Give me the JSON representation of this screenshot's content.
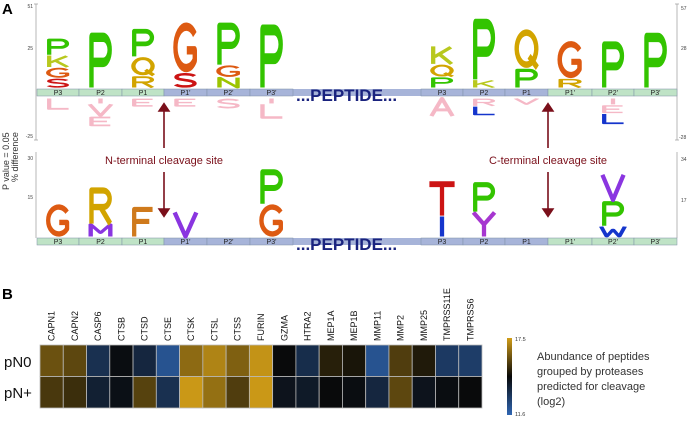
{
  "panel_a": {
    "label": "A",
    "y_label_line1": "P value = 0.05",
    "y_label_line2": "% difference",
    "peptide_label": "...PEPTIDE...",
    "n_site_label": "N-terminal cleavage site",
    "c_site_label": "C-terminal cleavage site",
    "positions_left": [
      "P3",
      "P2",
      "P1",
      "P1'",
      "P2'",
      "P3'"
    ],
    "positions_right": [
      "P3",
      "P2",
      "P1",
      "P1'",
      "P2'",
      "P3'"
    ],
    "top_axis_left_ticks": [
      "51",
      "25",
      "-25"
    ],
    "top_axis_right_ticks": [
      "57",
      "28",
      "-28"
    ],
    "bottom_axis_left_ticks": [
      "30",
      "15"
    ],
    "bottom_axis_right_ticks": [
      "34",
      "17"
    ],
    "colors": {
      "green": "#33c400",
      "orange": "#dd5a12",
      "olive": "#b8c81e",
      "red": "#cc1414",
      "gold": "#d2a400",
      "purple": "#8a35e0",
      "brown": "#cf7a1c",
      "blue": "#1535cc",
      "pink": "#f5b8c6",
      "magenta": "#a636d0",
      "yellowgreen": "#9cc400"
    },
    "top_logo": {
      "left_above": [
        [
          {
            "l": "S",
            "h": 5.5,
            "c": "red"
          },
          {
            "l": "G",
            "h": 6,
            "c": "orange"
          },
          {
            "l": "K",
            "h": 7,
            "c": "olive"
          },
          {
            "l": "P",
            "h": 10,
            "c": "green"
          }
        ],
        [
          {
            "l": "P",
            "h": 34,
            "c": "green"
          }
        ],
        [
          {
            "l": "R",
            "h": 7,
            "c": "gold"
          },
          {
            "l": "Q",
            "h": 11,
            "c": "gold"
          },
          {
            "l": "P",
            "h": 17,
            "c": "green"
          }
        ],
        [
          {
            "l": "S",
            "h": 9,
            "c": "red"
          },
          {
            "l": "G",
            "h": 30,
            "c": "orange"
          }
        ],
        [
          {
            "l": "N",
            "h": 6,
            "c": "yellowgreen"
          },
          {
            "l": "G",
            "h": 7,
            "c": "orange"
          },
          {
            "l": "P",
            "h": 26,
            "c": "green"
          }
        ],
        [
          {
            "l": "P",
            "h": 39,
            "c": "green"
          }
        ]
      ],
      "left_below": [
        [
          {
            "l": "L",
            "h": 7,
            "c": "pink"
          }
        ],
        [
          {
            "l": "I",
            "h": 3,
            "c": "pink"
          },
          {
            "l": "V",
            "h": 7,
            "c": "pink"
          },
          {
            "l": "E",
            "h": 6,
            "c": "pink"
          }
        ],
        [
          {
            "l": "E",
            "h": 5,
            "c": "pink"
          }
        ],
        [
          {
            "l": "E",
            "h": 5,
            "c": "pink"
          }
        ],
        [
          {
            "l": "S",
            "h": 6,
            "c": "pink"
          }
        ],
        [
          {
            "l": "I",
            "h": 3,
            "c": "pink"
          },
          {
            "l": "L",
            "h": 9,
            "c": "pink"
          }
        ]
      ],
      "right_above": [
        [
          {
            "l": "P",
            "h": 7,
            "c": "green"
          },
          {
            "l": "Q",
            "h": 8,
            "c": "gold"
          },
          {
            "l": "K",
            "h": 12,
            "c": "olive"
          }
        ],
        [
          {
            "l": "K",
            "h": 5,
            "c": "olive"
          },
          {
            "l": "P",
            "h": 42,
            "c": "green"
          }
        ],
        [
          {
            "l": "P",
            "h": 13,
            "c": "green"
          },
          {
            "l": "Q",
            "h": 26,
            "c": "gold"
          }
        ],
        [
          {
            "l": "R",
            "h": 6,
            "c": "gold"
          },
          {
            "l": "G",
            "h": 25,
            "c": "orange"
          }
        ],
        [
          {
            "l": "P",
            "h": 32,
            "c": "green"
          }
        ],
        [
          {
            "l": "P",
            "h": 38,
            "c": "green"
          }
        ]
      ],
      "right_below": [
        [
          {
            "l": "A",
            "h": 12,
            "c": "pink"
          }
        ],
        [
          {
            "l": "R",
            "h": 5,
            "c": "pink"
          },
          {
            "l": "L",
            "h": 6,
            "c": "blue"
          }
        ],
        [
          {
            "l": "V",
            "h": 4,
            "c": "pink"
          }
        ],
        [],
        [
          {
            "l": "I",
            "h": 4,
            "c": "pink"
          },
          {
            "l": "E",
            "h": 5.5,
            "c": "pink"
          },
          {
            "l": "L",
            "h": 7,
            "c": "blue"
          }
        ],
        []
      ]
    },
    "bottom_logo": {
      "left_above": [
        [
          {
            "l": "G",
            "h": 11.7,
            "c": "orange"
          }
        ],
        [
          {
            "l": "M",
            "h": 4.4,
            "c": "purple"
          },
          {
            "l": "R",
            "h": 13.5,
            "c": "gold"
          }
        ],
        [
          {
            "l": "F",
            "h": 11,
            "c": "brown"
          }
        ],
        [
          {
            "l": "V",
            "h": 8.8,
            "c": "purple"
          }
        ],
        [],
        [
          {
            "l": "G",
            "h": 11.7,
            "c": "orange"
          },
          {
            "l": "P",
            "h": 12.8,
            "c": "green"
          }
        ]
      ],
      "right_above": [
        [
          {
            "l": "I",
            "h": 8.3,
            "c": "blue"
          },
          {
            "l": "T",
            "h": 14.5,
            "c": "red"
          }
        ],
        [
          {
            "l": "Y",
            "h": 10,
            "c": "magenta"
          },
          {
            "l": "P",
            "h": 12.4,
            "c": "green"
          }
        ],
        [],
        [],
        [
          {
            "l": "W",
            "h": 4.1,
            "c": "blue"
          },
          {
            "l": "P",
            "h": 10.4,
            "c": "green"
          },
          {
            "l": "V",
            "h": 10.4,
            "c": "purple"
          }
        ],
        []
      ]
    }
  },
  "panel_b": {
    "label": "B",
    "chart_data": {
      "type": "heatmap",
      "columns": [
        "CAPN1",
        "CAPN2",
        "CASP6",
        "CTSB",
        "CTSD",
        "CTSE",
        "CTSK",
        "CTSL",
        "CTSS",
        "FURIN",
        "GZMA",
        "HTRA2",
        "MEP1A",
        "MEP1B",
        "MMP11",
        "MMP2",
        "MMP25",
        "TMPRSS11E",
        "TMPRSS6"
      ],
      "rows": [
        "pN0",
        "pN+"
      ],
      "values": [
        [
          16.0,
          15.8,
          13.3,
          14.4,
          13.6,
          12.2,
          16.5,
          17.0,
          16.3,
          17.3,
          14.5,
          13.4,
          15.0,
          14.8,
          12.2,
          15.6,
          14.9,
          13.0,
          12.9
        ],
        [
          15.5,
          15.3,
          13.8,
          14.3,
          15.7,
          13.3,
          17.4,
          16.6,
          15.6,
          17.4,
          14.2,
          14.0,
          14.5,
          14.4,
          13.6,
          15.8,
          14.2,
          14.4,
          14.5
        ]
      ],
      "colorbar": {
        "min": 11.6,
        "max": 17.5,
        "min_label": "11.6",
        "max_label": "17.5",
        "low_color": "#2f66b3",
        "mid_color": "#080808",
        "high_color": "#d19d18"
      },
      "legend_title_lines": [
        "Abundance of peptides",
        "grouped by proteases",
        "predicted for cleavage",
        "(log2)"
      ]
    }
  }
}
